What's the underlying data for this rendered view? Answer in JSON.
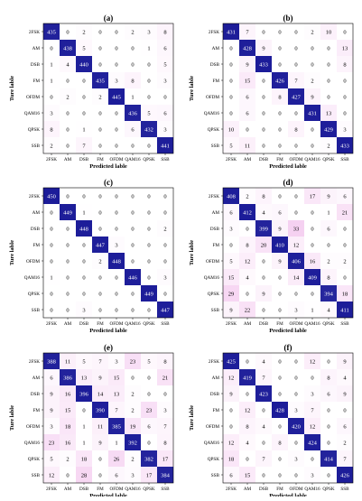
{
  "chart_data": [
    {
      "type": "heatmap",
      "title": "(a)",
      "xlabel": "Predicted lable",
      "ylabel": "Ture lable",
      "classes": [
        "2FSK",
        "AM",
        "DSB",
        "FM",
        "OFDM",
        "QAM16",
        "QPSK",
        "SSB"
      ],
      "values": [
        [
          435,
          0,
          2,
          0,
          0,
          2,
          3,
          8
        ],
        [
          0,
          438,
          5,
          0,
          0,
          0,
          1,
          6
        ],
        [
          1,
          4,
          440,
          0,
          0,
          0,
          0,
          5
        ],
        [
          1,
          0,
          0,
          435,
          3,
          8,
          0,
          3
        ],
        [
          0,
          2,
          0,
          2,
          445,
          1,
          0,
          0
        ],
        [
          3,
          0,
          0,
          0,
          0,
          436,
          5,
          6
        ],
        [
          8,
          0,
          1,
          0,
          0,
          6,
          432,
          3
        ],
        [
          2,
          0,
          7,
          0,
          0,
          0,
          0,
          441
        ]
      ]
    },
    {
      "type": "heatmap",
      "title": "(b)",
      "xlabel": "Predicted lable",
      "ylabel": "Ture lable",
      "classes": [
        "2FSK",
        "AM",
        "DSB",
        "FM",
        "OFDM",
        "QAM16",
        "QPSK",
        "SSB"
      ],
      "values": [
        [
          431,
          7,
          0,
          0,
          0,
          2,
          10,
          0
        ],
        [
          0,
          428,
          9,
          0,
          0,
          0,
          0,
          13
        ],
        [
          0,
          9,
          433,
          0,
          0,
          0,
          0,
          8
        ],
        [
          0,
          15,
          0,
          426,
          7,
          2,
          0,
          0
        ],
        [
          0,
          6,
          0,
          8,
          427,
          9,
          0,
          0
        ],
        [
          0,
          6,
          0,
          0,
          0,
          431,
          13,
          0
        ],
        [
          10,
          0,
          0,
          0,
          8,
          0,
          429,
          3
        ],
        [
          5,
          11,
          0,
          0,
          0,
          0,
          2,
          433
        ]
      ]
    },
    {
      "type": "heatmap",
      "title": "(c)",
      "xlabel": "Predicted lable",
      "ylabel": "Ture lable",
      "classes": [
        "2FSK",
        "AM",
        "DSB",
        "FM",
        "OFDM",
        "QAM16",
        "QPSK",
        "SSB"
      ],
      "values": [
        [
          450,
          0,
          0,
          0,
          0,
          0,
          0,
          0
        ],
        [
          0,
          449,
          1,
          0,
          0,
          0,
          0,
          0
        ],
        [
          0,
          0,
          448,
          0,
          0,
          0,
          0,
          2
        ],
        [
          0,
          0,
          0,
          447,
          3,
          0,
          0,
          0
        ],
        [
          0,
          0,
          0,
          2,
          448,
          0,
          0,
          0
        ],
        [
          1,
          0,
          0,
          0,
          0,
          446,
          0,
          3
        ],
        [
          0,
          0,
          0,
          0,
          0,
          0,
          449,
          0
        ],
        [
          0,
          0,
          3,
          0,
          0,
          0,
          0,
          447
        ]
      ]
    },
    {
      "type": "heatmap",
      "title": "(d)",
      "xlabel": "Predicted lable",
      "ylabel": "Ture lable",
      "classes": [
        "2FSK",
        "AM",
        "DSB",
        "FM",
        "OFDM",
        "QAM16",
        "QPSK",
        "SSB"
      ],
      "values": [
        [
          408,
          2,
          8,
          0,
          0,
          17,
          9,
          6
        ],
        [
          6,
          412,
          4,
          6,
          0,
          0,
          1,
          21
        ],
        [
          3,
          0,
          399,
          9,
          33,
          0,
          6,
          0
        ],
        [
          0,
          8,
          20,
          410,
          12,
          0,
          0,
          0
        ],
        [
          5,
          12,
          0,
          9,
          406,
          16,
          2,
          2
        ],
        [
          15,
          4,
          0,
          0,
          14,
          409,
          8,
          0
        ],
        [
          29,
          0,
          9,
          0,
          0,
          0,
          394,
          18
        ],
        [
          9,
          22,
          0,
          0,
          3,
          1,
          4,
          411
        ]
      ]
    },
    {
      "type": "heatmap",
      "title": "(e)",
      "xlabel": "Predicted lable",
      "ylabel": "Ture lable",
      "classes": [
        "2FSK",
        "AM",
        "DSB",
        "FM",
        "OFDM",
        "QAM16",
        "QPSK",
        "SSB"
      ],
      "values": [
        [
          388,
          11,
          5,
          7,
          3,
          23,
          5,
          8
        ],
        [
          6,
          386,
          13,
          9,
          15,
          0,
          0,
          21
        ],
        [
          9,
          16,
          396,
          14,
          13,
          2,
          0,
          0
        ],
        [
          9,
          15,
          0,
          390,
          7,
          2,
          23,
          3
        ],
        [
          3,
          18,
          1,
          11,
          385,
          19,
          6,
          7
        ],
        [
          23,
          16,
          1,
          9,
          1,
          392,
          0,
          8
        ],
        [
          5,
          2,
          18,
          0,
          26,
          2,
          382,
          17
        ],
        [
          12,
          0,
          28,
          0,
          6,
          3,
          17,
          384
        ]
      ]
    },
    {
      "type": "heatmap",
      "title": "(f)",
      "xlabel": "Predicted lable",
      "ylabel": "Ture lable",
      "classes": [
        "2FSK",
        "AM",
        "DSB",
        "FM",
        "OFDM",
        "QAM16",
        "QPSK",
        "SSB"
      ],
      "values": [
        [
          425,
          0,
          4,
          0,
          0,
          12,
          0,
          9
        ],
        [
          12,
          419,
          7,
          0,
          0,
          0,
          8,
          4
        ],
        [
          9,
          0,
          423,
          0,
          0,
          3,
          6,
          9
        ],
        [
          0,
          12,
          0,
          428,
          3,
          7,
          0,
          0
        ],
        [
          0,
          8,
          4,
          0,
          420,
          12,
          0,
          6
        ],
        [
          12,
          4,
          0,
          8,
          0,
          424,
          0,
          2
        ],
        [
          18,
          0,
          7,
          0,
          3,
          0,
          414,
          7
        ],
        [
          6,
          15,
          0,
          0,
          0,
          3,
          0,
          426
        ]
      ]
    }
  ],
  "colors": {
    "high": "#1c1c99",
    "low": "#ffffff",
    "tint": "#f3c6ee"
  }
}
